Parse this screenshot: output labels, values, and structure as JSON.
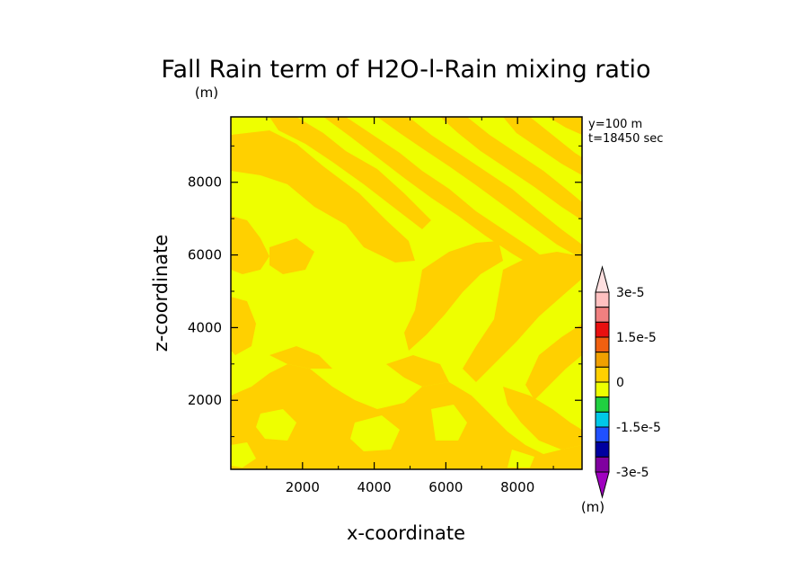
{
  "chart_data": {
    "type": "heatmap",
    "title": "Fall Rain term of H2O-l-Rain mixing ratio",
    "units_top": "(m)",
    "xlabel": "x-coordinate",
    "ylabel": "z-coordinate",
    "xlim": [
      0,
      9800
    ],
    "ylim": [
      100,
      9800
    ],
    "x_ticks": [
      2000,
      4000,
      6000,
      8000
    ],
    "y_ticks": [
      2000,
      4000,
      6000,
      8000
    ],
    "annotations": [
      "y=100 m",
      "t=18450 sec"
    ],
    "colorbar": {
      "unit": "(m)",
      "tick_labels": [
        "3e-5",
        "1.5e-5",
        "0",
        "-1.5e-5",
        "-3e-5"
      ],
      "tick_values": [
        3e-05,
        1.5e-05,
        0,
        -1.5e-05,
        -3e-05
      ],
      "levels": [
        3e-05,
        2.5e-05,
        2e-05,
        1.5e-05,
        1e-05,
        5e-06,
        0,
        -5e-06,
        -1e-05,
        -1.5e-05,
        -2e-05,
        -2.5e-05,
        -3e-05
      ],
      "colors_top_to_bottom": [
        "#ffc0c0",
        "#f08080",
        "#e81010",
        "#f06010",
        "#f0a000",
        "#ffd000",
        "#eeff00",
        "#20d040",
        "#00c8e8",
        "#2050ff",
        "#0000a0",
        "#8000a0"
      ],
      "arrow_top_color": "#ffe0e0",
      "arrow_bottom_color": "#a000c0"
    },
    "field_classes": {
      "low": {
        "range": [
          0,
          5e-06
        ],
        "color": "#eeff00"
      },
      "high": {
        "range": [
          5e-06,
          1e-05
        ],
        "color": "#ffd000"
      }
    }
  }
}
